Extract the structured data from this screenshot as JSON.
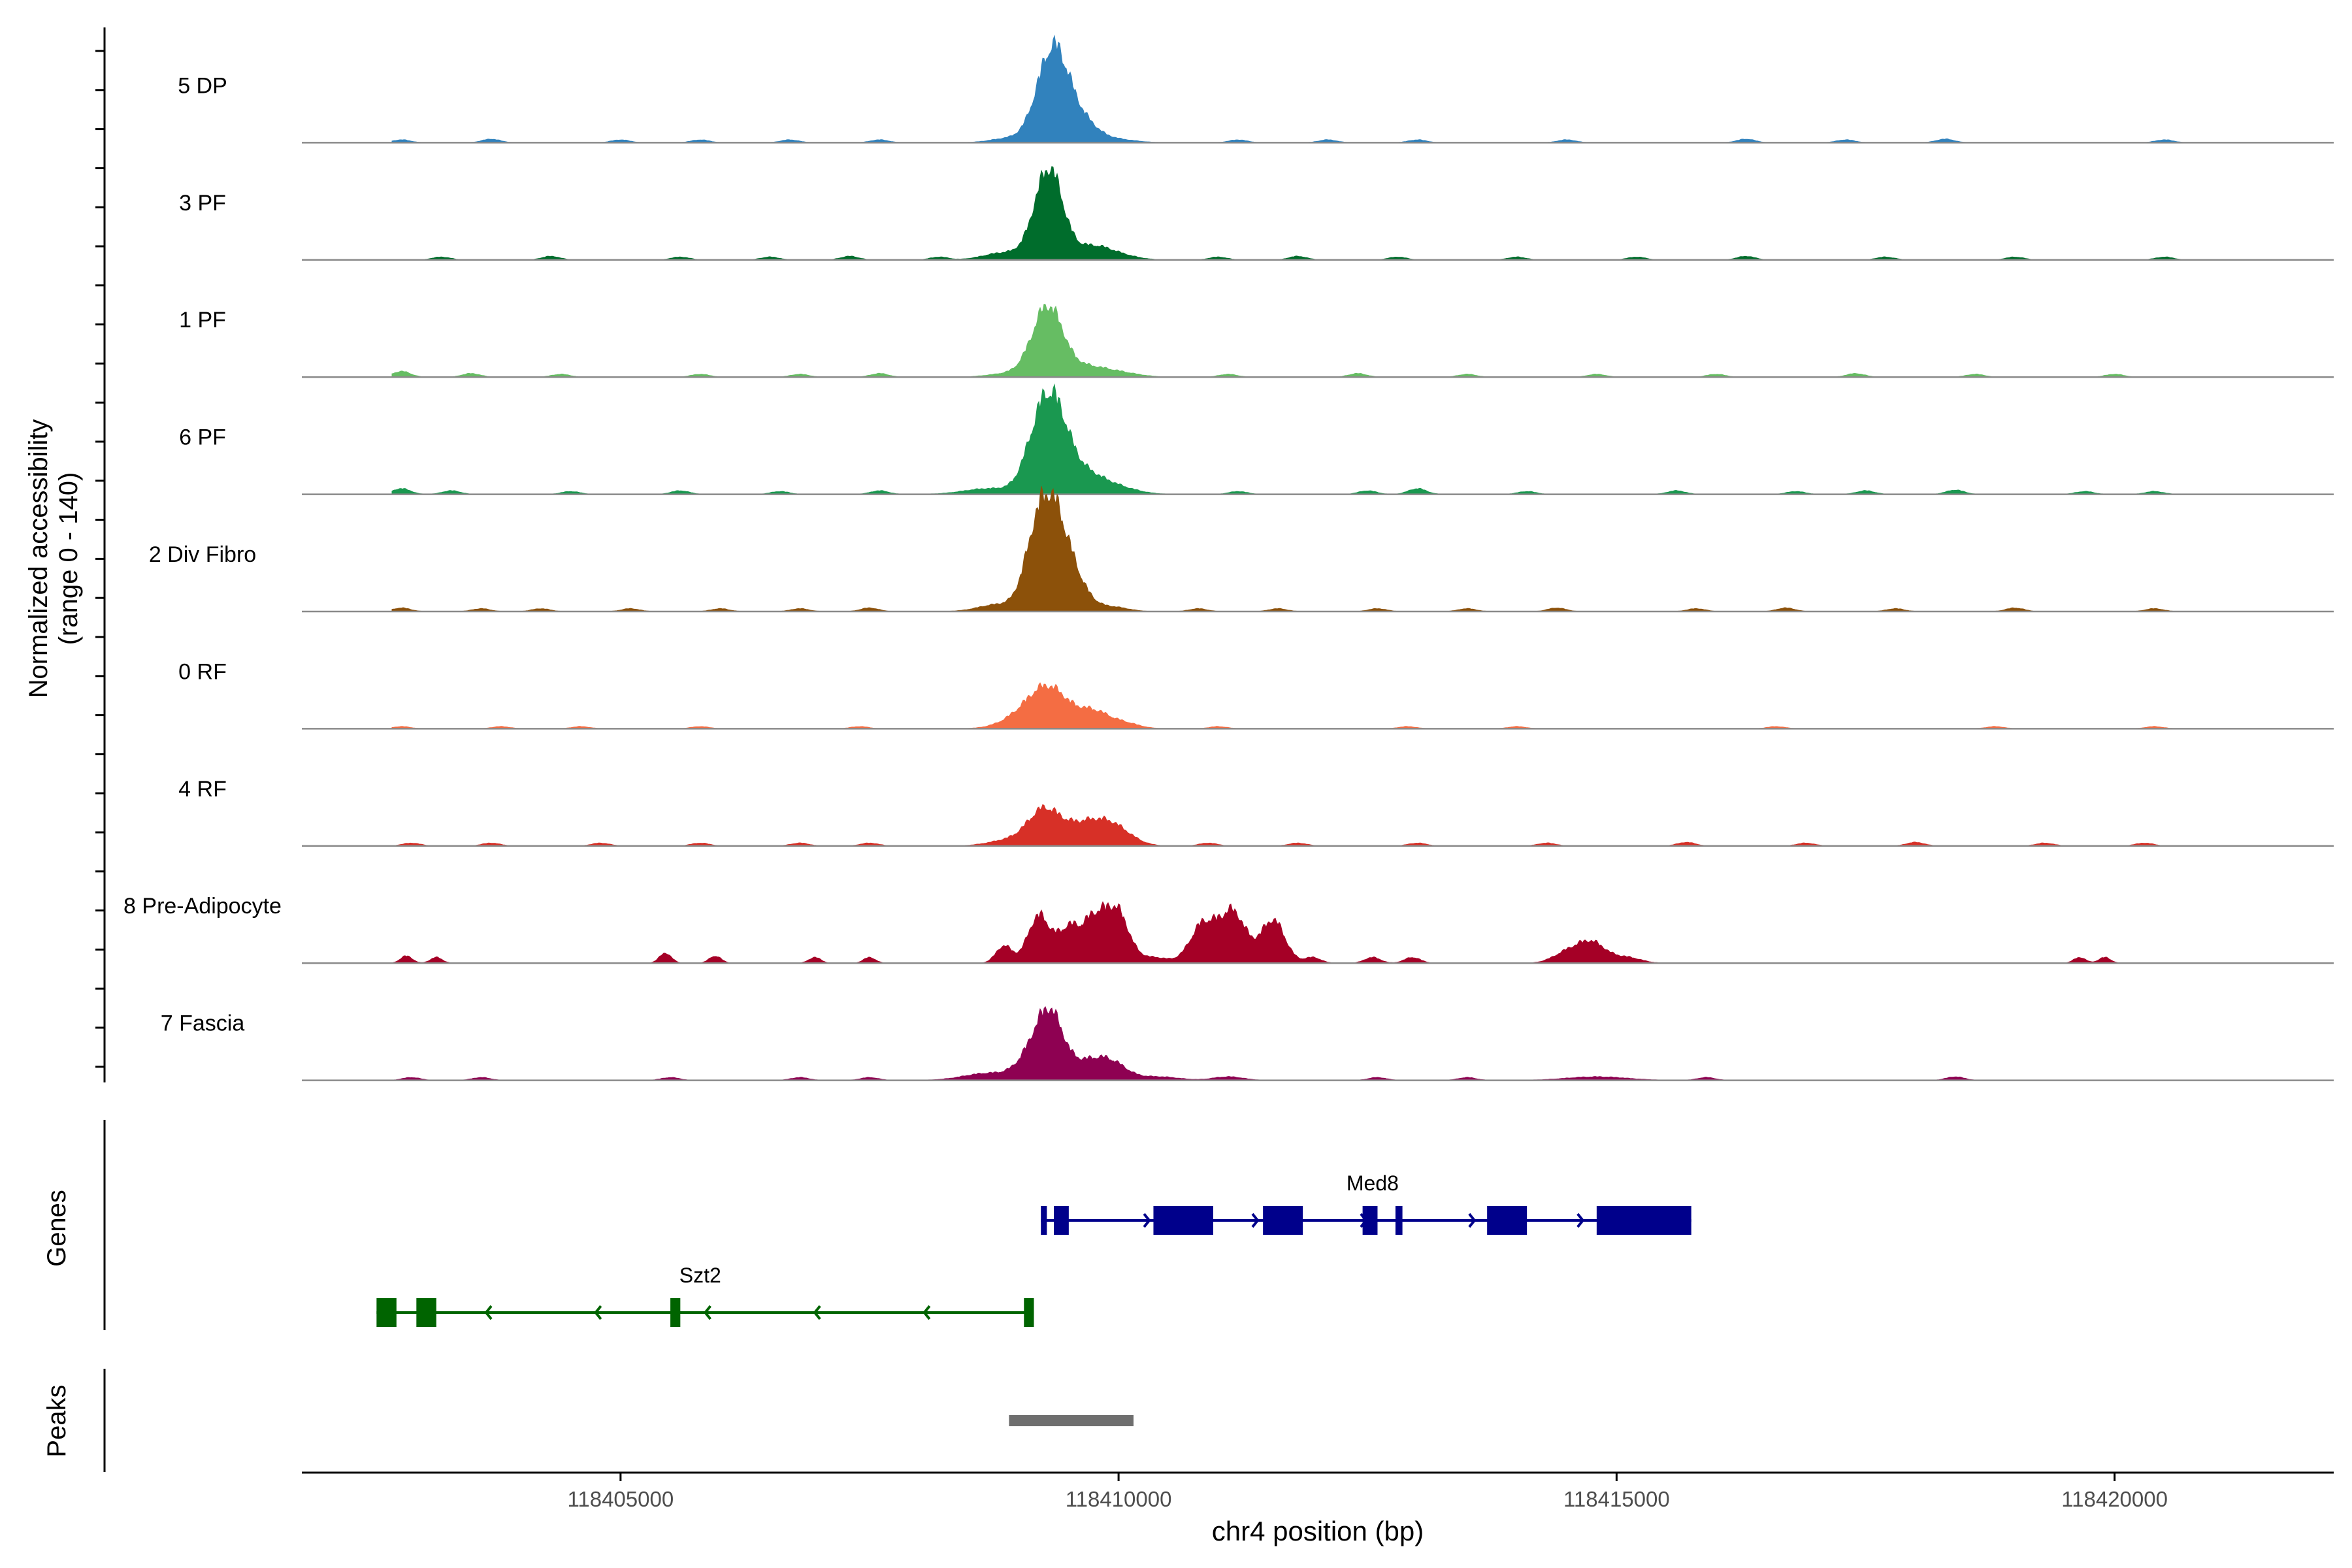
{
  "chart_data": {
    "type": "area",
    "title": "",
    "ylabel_line1": "Normalized accessibility",
    "ylabel_line2": "(range 0 - 140)",
    "ylim": [
      0,
      140
    ],
    "xlabel": "chr4 position (bp)",
    "xlim": [
      118401800,
      118422200
    ],
    "x_ticks": [
      118405000,
      118410000,
      118415000,
      118420000
    ],
    "x_tick_labels": [
      "118405000",
      "118410000",
      "118415000",
      "118420000"
    ],
    "colors": {
      "5 DP": "#3182bd",
      "3 PF": "#006d2c",
      "1 PF": "#66bd63",
      "6 PF": "#1a9850",
      "2 Div Fibro": "#8c510a",
      "0 RF": "#f46d43",
      "4 RF": "#d73027",
      "8 Pre-Adipocyte": "#a50026",
      "7 Fascia": "#8e0152",
      "med8": "#00008b",
      "szt2": "#006400",
      "peak": "#6e6e6e"
    },
    "tracks": [
      {
        "name": "5 DP",
        "peaks": [
          [
            118409380,
            96,
            140
          ],
          [
            118409250,
            48,
            140
          ],
          [
            118409630,
            28,
            150
          ],
          [
            118408900,
            6,
            180
          ],
          [
            118409950,
            5,
            200
          ]
        ],
        "noise": [
          [
            118402800,
            4
          ],
          [
            118403700,
            5
          ],
          [
            118405000,
            4
          ],
          [
            118405800,
            4
          ],
          [
            118406700,
            4
          ],
          [
            118407600,
            4
          ],
          [
            118411200,
            4
          ],
          [
            118412100,
            4
          ],
          [
            118413000,
            4
          ],
          [
            118414500,
            4
          ],
          [
            118416300,
            5
          ],
          [
            118417300,
            4
          ],
          [
            118418300,
            5
          ],
          [
            118420500,
            4
          ]
        ]
      },
      {
        "name": "3 PF",
        "peaks": [
          [
            118409330,
            94,
            130
          ],
          [
            118409220,
            42,
            130
          ],
          [
            118409720,
            18,
            180
          ],
          [
            118408850,
            10,
            200
          ],
          [
            118410000,
            6,
            180
          ]
        ],
        "noise": [
          [
            118403200,
            4
          ],
          [
            118404300,
            5
          ],
          [
            118405600,
            4
          ],
          [
            118406500,
            4
          ],
          [
            118407300,
            5
          ],
          [
            118408200,
            4
          ],
          [
            118411000,
            4
          ],
          [
            118411800,
            5
          ],
          [
            118412800,
            4
          ],
          [
            118414000,
            4
          ],
          [
            118415200,
            4
          ],
          [
            118416300,
            5
          ],
          [
            118417700,
            4
          ],
          [
            118419000,
            4
          ],
          [
            118420500,
            4
          ]
        ]
      },
      {
        "name": "1 PF",
        "peaks": [
          [
            118409320,
            72,
            140
          ],
          [
            118409200,
            32,
            140
          ],
          [
            118409650,
            14,
            200
          ],
          [
            118410000,
            6,
            200
          ],
          [
            118408900,
            5,
            200
          ]
        ],
        "noise": [
          [
            118402800,
            8
          ],
          [
            118403500,
            5
          ],
          [
            118404400,
            4
          ],
          [
            118405800,
            4
          ],
          [
            118406800,
            4
          ],
          [
            118407600,
            5
          ],
          [
            118411100,
            4
          ],
          [
            118412400,
            5
          ],
          [
            118413500,
            4
          ],
          [
            118414800,
            4
          ],
          [
            118416000,
            4
          ],
          [
            118417400,
            5
          ],
          [
            118418600,
            4
          ],
          [
            118420000,
            4
          ]
        ]
      },
      {
        "name": "6 PF",
        "peaks": [
          [
            118409350,
            104,
            150
          ],
          [
            118409180,
            56,
            140
          ],
          [
            118409650,
            28,
            200
          ],
          [
            118408700,
            8,
            250
          ],
          [
            118410000,
            8,
            200
          ]
        ],
        "noise": [
          [
            118402800,
            8
          ],
          [
            118403300,
            5
          ],
          [
            118404500,
            4
          ],
          [
            118405600,
            5
          ],
          [
            118406600,
            4
          ],
          [
            118407600,
            5
          ],
          [
            118411200,
            4
          ],
          [
            118412500,
            5
          ],
          [
            118413000,
            8
          ],
          [
            118414100,
            4
          ],
          [
            118415600,
            5
          ],
          [
            118416800,
            4
          ],
          [
            118417500,
            5
          ],
          [
            118418400,
            6
          ],
          [
            118419700,
            4
          ],
          [
            118420400,
            4
          ]
        ]
      },
      {
        "name": "2 Div Fibro",
        "peaks": [
          [
            118409320,
            134,
            150
          ],
          [
            118409150,
            52,
            120
          ],
          [
            118409550,
            36,
            150
          ],
          [
            118408800,
            10,
            200
          ],
          [
            118409950,
            6,
            150
          ]
        ],
        "noise": [
          [
            118402800,
            5
          ],
          [
            118403600,
            4
          ],
          [
            118404200,
            4
          ],
          [
            118405100,
            4
          ],
          [
            118406000,
            4
          ],
          [
            118406800,
            4
          ],
          [
            118407500,
            5
          ],
          [
            118410800,
            4
          ],
          [
            118411600,
            4
          ],
          [
            118412600,
            4
          ],
          [
            118413500,
            4
          ],
          [
            118414400,
            5
          ],
          [
            118415800,
            4
          ],
          [
            118416700,
            5
          ],
          [
            118417800,
            4
          ],
          [
            118419000,
            5
          ],
          [
            118420400,
            4
          ]
        ]
      },
      {
        "name": "0 RF",
        "peaks": [
          [
            118409300,
            56,
            200
          ],
          [
            118409750,
            22,
            150
          ],
          [
            118409000,
            12,
            200
          ],
          [
            118410050,
            8,
            150
          ]
        ],
        "noise": [
          [
            118402800,
            3
          ],
          [
            118403800,
            3
          ],
          [
            118404600,
            3
          ],
          [
            118405800,
            3
          ],
          [
            118407400,
            3
          ],
          [
            118411000,
            3
          ],
          [
            118412900,
            3
          ],
          [
            118414000,
            3
          ],
          [
            118416600,
            3
          ],
          [
            118418800,
            3
          ],
          [
            118420400,
            3
          ]
        ]
      },
      {
        "name": "4 RF",
        "peaks": [
          [
            118409250,
            48,
            160
          ],
          [
            118409650,
            28,
            200
          ],
          [
            118409950,
            24,
            180
          ],
          [
            118408900,
            8,
            200
          ]
        ],
        "noise": [
          [
            118402900,
            4
          ],
          [
            118403700,
            4
          ],
          [
            118404800,
            4
          ],
          [
            118405800,
            4
          ],
          [
            118406800,
            4
          ],
          [
            118407500,
            4
          ],
          [
            118410900,
            4
          ],
          [
            118411800,
            4
          ],
          [
            118413000,
            4
          ],
          [
            118414300,
            4
          ],
          [
            118415700,
            5
          ],
          [
            118416900,
            4
          ],
          [
            118418000,
            5
          ],
          [
            118419300,
            4
          ],
          [
            118420300,
            4
          ]
        ]
      },
      {
        "name": "8 Pre-Adipocyte",
        "peaks": [
          [
            118408850,
            24,
            80
          ],
          [
            118409200,
            66,
            110
          ],
          [
            118409500,
            48,
            110
          ],
          [
            118409750,
            56,
            110
          ],
          [
            118409980,
            72,
            120
          ],
          [
            118410350,
            8,
            150
          ],
          [
            118410850,
            54,
            130
          ],
          [
            118411150,
            70,
            130
          ],
          [
            118411550,
            60,
            120
          ],
          [
            118411950,
            8,
            80
          ],
          [
            118412550,
            8,
            80
          ],
          [
            118412950,
            8,
            80
          ],
          [
            118414500,
            14,
            140
          ],
          [
            118414750,
            28,
            140
          ],
          [
            118415100,
            8,
            140
          ],
          [
            118402850,
            10,
            60
          ],
          [
            118403150,
            8,
            60
          ],
          [
            118405450,
            14,
            60
          ],
          [
            118405950,
            10,
            60
          ],
          [
            118406950,
            8,
            60
          ],
          [
            118407500,
            8,
            60
          ],
          [
            118419650,
            8,
            60
          ],
          [
            118419900,
            8,
            60
          ]
        ],
        "noise": []
      },
      {
        "name": "7 Fascia",
        "peaks": [
          [
            118409320,
            76,
            130
          ],
          [
            118409150,
            36,
            150
          ],
          [
            118409700,
            26,
            200
          ],
          [
            118409950,
            16,
            150
          ],
          [
            118408700,
            10,
            250
          ],
          [
            118410400,
            5,
            200
          ],
          [
            118411100,
            5,
            150
          ],
          [
            118414800,
            5,
            300
          ]
        ],
        "noise": [
          [
            118402900,
            4
          ],
          [
            118403600,
            4
          ],
          [
            118405500,
            4
          ],
          [
            118406800,
            4
          ],
          [
            118407500,
            4
          ],
          [
            118412600,
            4
          ],
          [
            118413500,
            4
          ],
          [
            118415900,
            4
          ],
          [
            118418400,
            5
          ]
        ]
      }
    ],
    "genes": [
      {
        "name": "Med8",
        "strand": "+",
        "start": 118409220,
        "end": 118415750,
        "exons": [
          [
            118409220,
            118409280
          ],
          [
            118409350,
            118409500
          ],
          [
            118410350,
            118410950
          ],
          [
            118411450,
            118411850
          ],
          [
            118412450,
            118412600
          ],
          [
            118412780,
            118412850
          ],
          [
            118413700,
            118414100
          ],
          [
            118414800,
            118415750
          ]
        ]
      },
      {
        "name": "Szt2",
        "strand": "-",
        "start": 118402550,
        "end": 118409150,
        "exons": [
          [
            118402550,
            118402750
          ],
          [
            118402950,
            118403150
          ],
          [
            118405500,
            118405600
          ],
          [
            118409050,
            118409150
          ]
        ]
      }
    ],
    "peaks_track": [
      [
        118408900,
        118410150
      ]
    ],
    "panel_labels": {
      "genes": "Genes",
      "peaks": "Peaks"
    }
  }
}
